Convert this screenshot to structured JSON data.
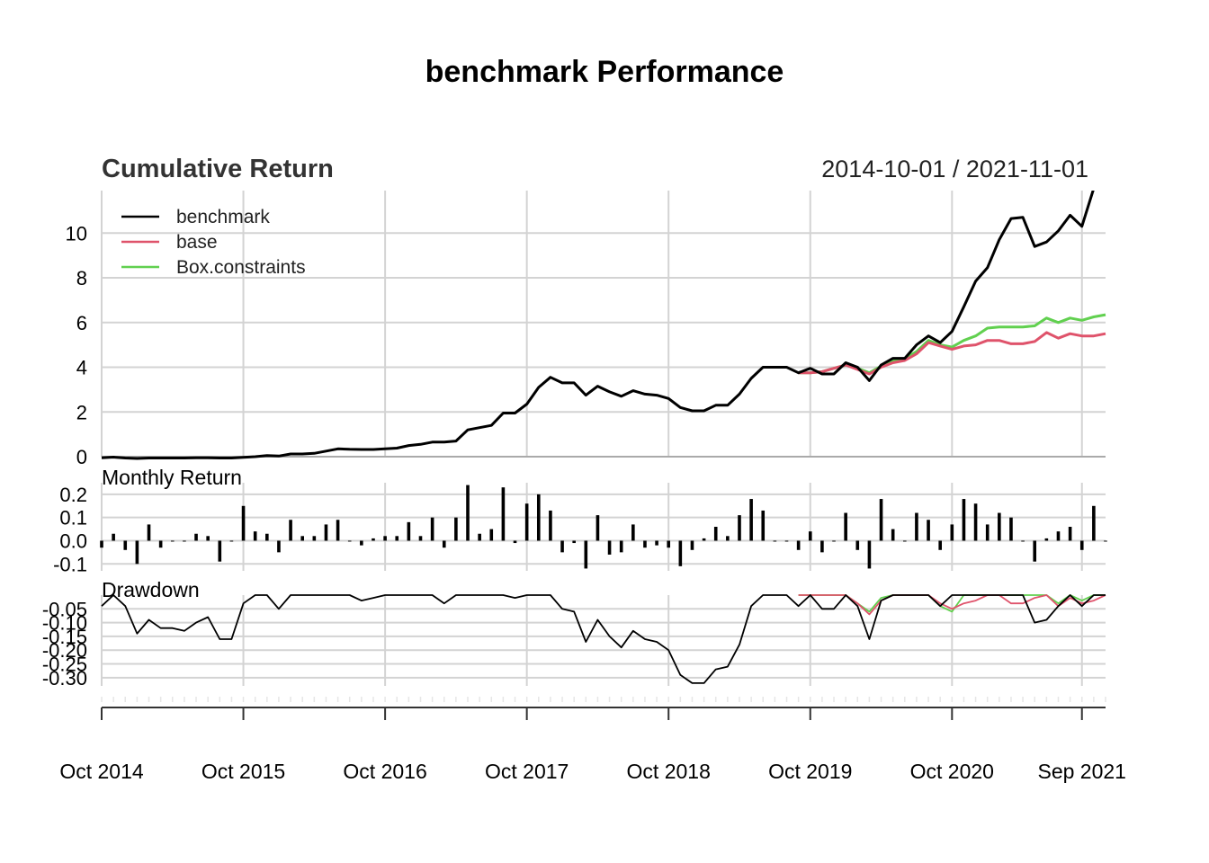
{
  "title": "benchmark Performance",
  "date_range": "2014-10-01 / 2021-11-01",
  "colors": {
    "benchmark": "#000000",
    "base": "#df536b",
    "Box.constraints": "#61d04f",
    "grid": "#d3d3d3"
  },
  "chart_data": [
    {
      "type": "line",
      "title": "Cumulative Return",
      "legend_position": "top-left",
      "grid": true,
      "ylim": [
        0,
        12
      ],
      "yticks": [
        "0",
        "2",
        "4",
        "6",
        "8",
        "10"
      ],
      "x": [
        "2014-10",
        "2014-11",
        "2014-12",
        "2015-01",
        "2015-02",
        "2015-03",
        "2015-04",
        "2015-05",
        "2015-06",
        "2015-07",
        "2015-08",
        "2015-09",
        "2015-10",
        "2015-11",
        "2015-12",
        "2016-01",
        "2016-02",
        "2016-03",
        "2016-04",
        "2016-05",
        "2016-06",
        "2016-07",
        "2016-08",
        "2016-09",
        "2016-10",
        "2016-11",
        "2016-12",
        "2017-01",
        "2017-02",
        "2017-03",
        "2017-04",
        "2017-05",
        "2017-06",
        "2017-07",
        "2017-08",
        "2017-09",
        "2017-10",
        "2017-11",
        "2017-12",
        "2018-01",
        "2018-02",
        "2018-03",
        "2018-04",
        "2018-05",
        "2018-06",
        "2018-07",
        "2018-08",
        "2018-09",
        "2018-10",
        "2018-11",
        "2018-12",
        "2019-01",
        "2019-02",
        "2019-03",
        "2019-04",
        "2019-05",
        "2019-06",
        "2019-07",
        "2019-08",
        "2019-09",
        "2019-10",
        "2019-11",
        "2019-12",
        "2020-01",
        "2020-02",
        "2020-03",
        "2020-04",
        "2020-05",
        "2020-06",
        "2020-07",
        "2020-08",
        "2020-09",
        "2020-10",
        "2020-11",
        "2020-12",
        "2021-01",
        "2021-02",
        "2021-03",
        "2021-04",
        "2021-05",
        "2021-06",
        "2021-07",
        "2021-08",
        "2021-09",
        "2021-10",
        "2021-11"
      ],
      "series": [
        {
          "name": "benchmark",
          "values": [
            -0.05,
            -0.02,
            -0.06,
            -0.08,
            -0.06,
            -0.06,
            -0.06,
            -0.06,
            -0.05,
            -0.05,
            -0.06,
            -0.06,
            -0.03,
            0.0,
            0.05,
            0.03,
            0.12,
            0.12,
            0.15,
            0.25,
            0.35,
            0.33,
            0.32,
            0.32,
            0.35,
            0.38,
            0.5,
            0.55,
            0.65,
            0.65,
            0.7,
            1.2,
            1.3,
            1.4,
            1.95,
            1.95,
            2.35,
            3.1,
            3.55,
            3.3,
            3.3,
            2.75,
            3.15,
            2.9,
            2.7,
            2.95,
            2.8,
            2.75,
            2.6,
            2.2,
            2.05,
            2.05,
            2.3,
            2.3,
            2.8,
            3.5,
            4.0,
            4.0,
            4.0,
            3.75,
            3.95,
            3.7,
            3.7,
            4.2,
            4.0,
            3.4,
            4.1,
            4.4,
            4.4,
            5.0,
            5.4,
            5.1,
            5.6,
            6.7,
            7.85,
            8.45,
            9.7,
            10.65,
            10.7,
            9.4,
            9.6,
            10.1,
            10.8,
            10.3,
            12.0,
            12.3
          ]
        },
        {
          "name": "base",
          "values": [
            null,
            null,
            null,
            null,
            null,
            null,
            null,
            null,
            null,
            null,
            null,
            null,
            null,
            null,
            null,
            null,
            null,
            null,
            null,
            null,
            null,
            null,
            null,
            null,
            null,
            null,
            null,
            null,
            null,
            null,
            null,
            null,
            null,
            null,
            null,
            null,
            null,
            null,
            null,
            null,
            null,
            null,
            null,
            null,
            null,
            null,
            null,
            null,
            null,
            null,
            null,
            null,
            null,
            null,
            null,
            null,
            null,
            null,
            null,
            3.75,
            3.75,
            3.8,
            3.95,
            4.1,
            3.9,
            3.7,
            4.0,
            4.2,
            4.3,
            4.6,
            5.1,
            4.95,
            4.8,
            4.95,
            5.0,
            5.2,
            5.2,
            5.05,
            5.05,
            5.15,
            5.55,
            5.3,
            5.5,
            5.4,
            5.4,
            5.5
          ]
        },
        {
          "name": "Box.constraints",
          "values": [
            null,
            null,
            null,
            null,
            null,
            null,
            null,
            null,
            null,
            null,
            null,
            null,
            null,
            null,
            null,
            null,
            null,
            null,
            null,
            null,
            null,
            null,
            null,
            null,
            null,
            null,
            null,
            null,
            null,
            null,
            null,
            null,
            null,
            null,
            null,
            null,
            null,
            null,
            null,
            null,
            null,
            null,
            null,
            null,
            null,
            null,
            null,
            null,
            null,
            null,
            null,
            null,
            null,
            null,
            null,
            null,
            null,
            null,
            null,
            3.75,
            3.75,
            3.8,
            3.95,
            4.1,
            3.95,
            3.75,
            4.05,
            4.3,
            4.4,
            4.7,
            5.2,
            5.0,
            4.9,
            5.2,
            5.4,
            5.75,
            5.8,
            5.8,
            5.8,
            5.85,
            6.2,
            6.0,
            6.2,
            6.1,
            6.25,
            6.35
          ]
        }
      ]
    },
    {
      "type": "bar",
      "title": "Monthly Return",
      "grid": true,
      "ylim": [
        -0.13,
        0.25
      ],
      "yticks": [
        "-0.1",
        "0.0",
        "0.1",
        "0.2"
      ],
      "series": [
        {
          "name": "benchmark",
          "values": [
            -0.03,
            0.03,
            -0.04,
            -0.1,
            0.07,
            -0.03,
            0.0,
            0.0,
            0.03,
            0.02,
            -0.09,
            0.0,
            0.15,
            0.04,
            0.03,
            -0.05,
            0.09,
            0.02,
            0.02,
            0.07,
            0.09,
            0.0,
            -0.02,
            0.01,
            0.02,
            0.02,
            0.08,
            0.02,
            0.1,
            -0.03,
            0.1,
            0.24,
            0.03,
            0.05,
            0.23,
            -0.01,
            0.16,
            0.2,
            0.13,
            -0.05,
            -0.01,
            -0.12,
            0.11,
            -0.06,
            -0.05,
            0.07,
            -0.03,
            -0.02,
            -0.03,
            -0.11,
            -0.04,
            0.01,
            0.06,
            0.02,
            0.11,
            0.18,
            0.13,
            0.0,
            0.0,
            -0.04,
            0.04,
            -0.05,
            0.0,
            0.12,
            -0.04,
            -0.12,
            0.18,
            0.05,
            0.0,
            0.12,
            0.09,
            -0.04,
            0.07,
            0.18,
            0.16,
            0.07,
            0.12,
            0.1,
            0.0,
            -0.09,
            0.01,
            0.04,
            0.06,
            -0.04,
            0.15,
            0.0
          ]
        }
      ]
    },
    {
      "type": "line",
      "title": "Drawdown",
      "grid": true,
      "ylim": [
        -0.33,
        0.0
      ],
      "yticks": [
        "-0.05",
        "-0.10",
        "-0.15",
        "-0.20",
        "-0.25",
        "-0.30"
      ],
      "xticks": [
        "Oct 2014",
        "Oct 2015",
        "Oct 2016",
        "Oct 2017",
        "Oct 2018",
        "Oct 2019",
        "Oct 2020",
        "Sep 2021"
      ],
      "series": [
        {
          "name": "benchmark",
          "values": [
            -0.04,
            0.0,
            -0.04,
            -0.14,
            -0.09,
            -0.12,
            -0.12,
            -0.13,
            -0.1,
            -0.08,
            -0.16,
            -0.16,
            -0.03,
            0.0,
            0.0,
            -0.05,
            0.0,
            0.0,
            0.0,
            0.0,
            0.0,
            0.0,
            -0.02,
            -0.01,
            0.0,
            0.0,
            0.0,
            0.0,
            0.0,
            -0.03,
            0.0,
            0.0,
            0.0,
            0.0,
            0.0,
            -0.01,
            0.0,
            0.0,
            0.0,
            -0.05,
            -0.06,
            -0.17,
            -0.09,
            -0.15,
            -0.19,
            -0.13,
            -0.16,
            -0.17,
            -0.2,
            -0.29,
            -0.32,
            -0.32,
            -0.27,
            -0.26,
            -0.18,
            -0.04,
            0.0,
            0.0,
            0.0,
            -0.04,
            0.0,
            -0.05,
            -0.05,
            0.0,
            -0.04,
            -0.16,
            -0.02,
            0.0,
            0.0,
            0.0,
            0.0,
            -0.04,
            0.0,
            0.0,
            0.0,
            0.0,
            0.0,
            0.0,
            0.0,
            -0.1,
            -0.09,
            -0.04,
            0.0,
            -0.04,
            0.0,
            0.0
          ]
        },
        {
          "name": "base",
          "values": [
            null,
            null,
            null,
            null,
            null,
            null,
            null,
            null,
            null,
            null,
            null,
            null,
            null,
            null,
            null,
            null,
            null,
            null,
            null,
            null,
            null,
            null,
            null,
            null,
            null,
            null,
            null,
            null,
            null,
            null,
            null,
            null,
            null,
            null,
            null,
            null,
            null,
            null,
            null,
            null,
            null,
            null,
            null,
            null,
            null,
            null,
            null,
            null,
            null,
            null,
            null,
            null,
            null,
            null,
            null,
            null,
            null,
            null,
            null,
            0.0,
            0.0,
            0.0,
            0.0,
            0.0,
            -0.03,
            -0.07,
            -0.02,
            0.0,
            0.0,
            0.0,
            0.0,
            -0.03,
            -0.05,
            -0.03,
            -0.02,
            0.0,
            0.0,
            -0.03,
            -0.03,
            -0.01,
            0.0,
            -0.04,
            -0.01,
            -0.03,
            -0.02,
            0.0
          ]
        },
        {
          "name": "Box.constraints",
          "values": [
            null,
            null,
            null,
            null,
            null,
            null,
            null,
            null,
            null,
            null,
            null,
            null,
            null,
            null,
            null,
            null,
            null,
            null,
            null,
            null,
            null,
            null,
            null,
            null,
            null,
            null,
            null,
            null,
            null,
            null,
            null,
            null,
            null,
            null,
            null,
            null,
            null,
            null,
            null,
            null,
            null,
            null,
            null,
            null,
            null,
            null,
            null,
            null,
            null,
            null,
            null,
            null,
            null,
            null,
            null,
            null,
            null,
            null,
            null,
            0.0,
            0.0,
            0.0,
            0.0,
            0.0,
            -0.03,
            -0.06,
            -0.01,
            0.0,
            0.0,
            0.0,
            0.0,
            -0.04,
            -0.06,
            0.0,
            0.0,
            0.0,
            0.0,
            0.0,
            0.0,
            0.0,
            0.0,
            -0.03,
            0.0,
            -0.02,
            0.0,
            0.0
          ]
        }
      ]
    }
  ]
}
